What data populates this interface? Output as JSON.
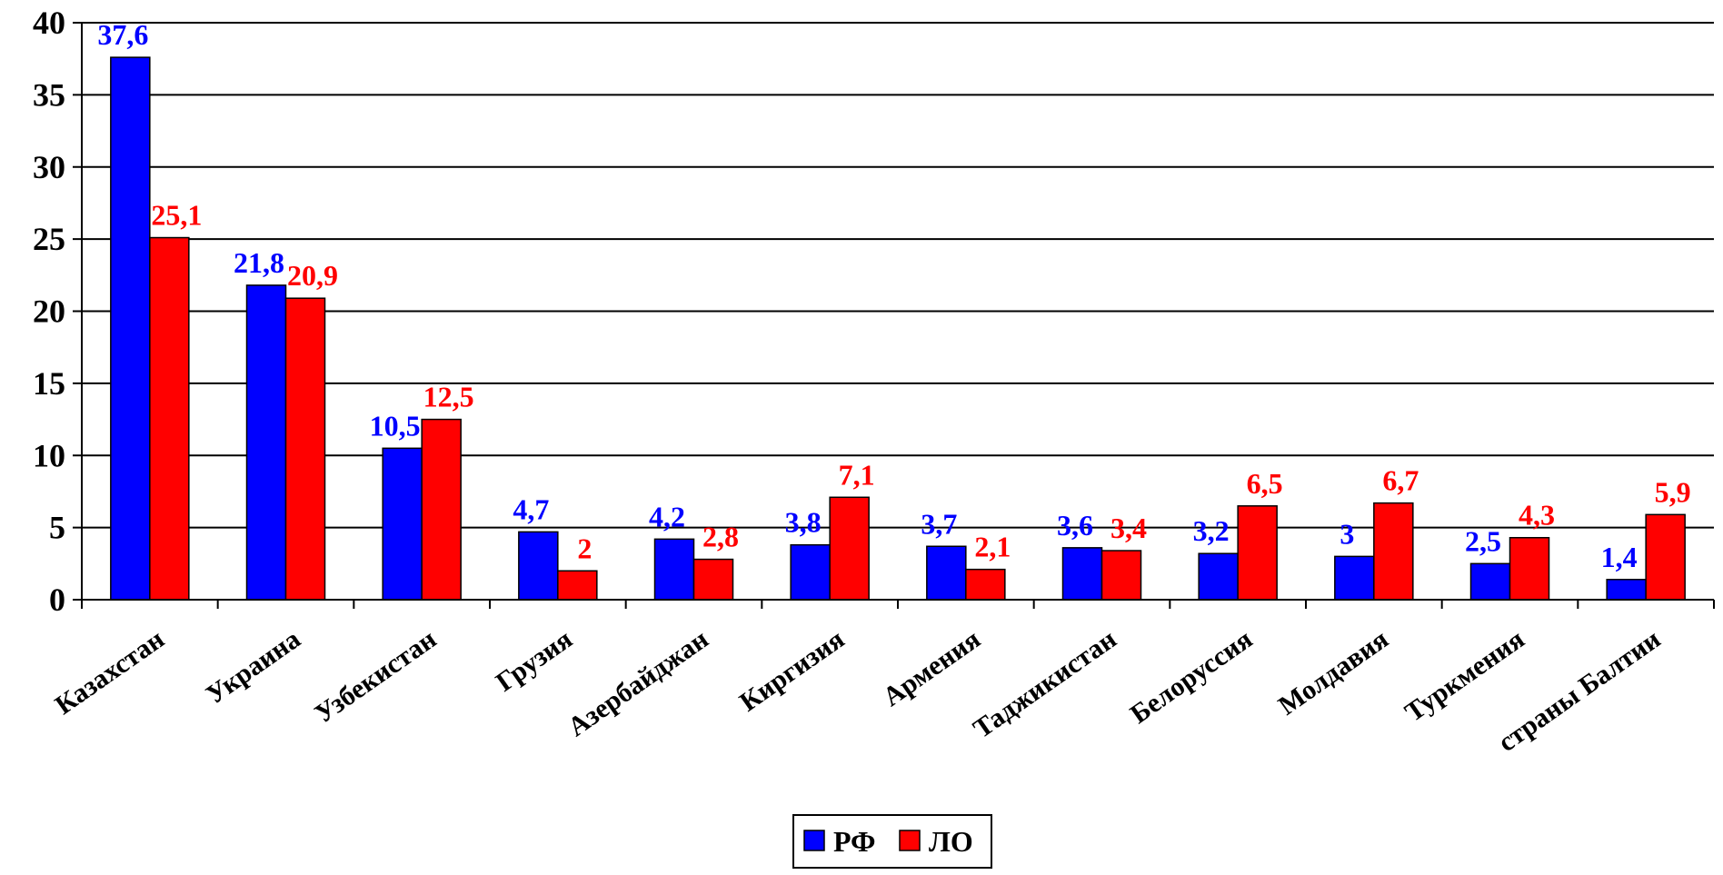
{
  "chart_data": {
    "type": "bar",
    "categories": [
      "Казахстан",
      "Украина",
      "Узбекистан",
      "Грузия",
      "Азербайджан",
      "Киргизия",
      "Армения",
      "Таджикистан",
      "Белоруссия",
      "Молдавия",
      "Туркмения",
      "страны Балтии"
    ],
    "series": [
      {
        "name": "РФ",
        "color": "#0000ff",
        "values": [
          37.6,
          21.8,
          10.5,
          4.7,
          4.2,
          3.8,
          3.7,
          3.6,
          3.2,
          3,
          2.5,
          1.4
        ],
        "labels": [
          "37,6",
          "21,8",
          "10,5",
          "4,7",
          "4,2",
          "3,8",
          "3,7",
          "3,6",
          "3,2",
          "3",
          "2,5",
          "1,4"
        ]
      },
      {
        "name": "ЛО",
        "color": "#ff0000",
        "values": [
          25.1,
          20.9,
          12.5,
          2,
          2.8,
          7.1,
          2.1,
          3.4,
          6.5,
          6.7,
          4.3,
          5.9
        ],
        "labels": [
          "25,1",
          "20,9",
          "12,5",
          "2",
          "2,8",
          "7,1",
          "2,1",
          "3,4",
          "6,5",
          "6,7",
          "4,3",
          "5,9"
        ]
      }
    ],
    "ylim": [
      0,
      40
    ],
    "yticks": [
      0,
      5,
      10,
      15,
      20,
      25,
      30,
      35,
      40
    ],
    "grid": true,
    "legend": "bottom-center",
    "xlabel": "",
    "ylabel": ""
  }
}
